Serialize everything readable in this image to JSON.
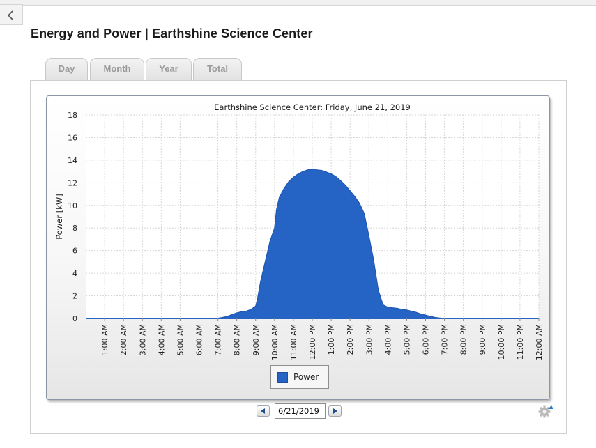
{
  "page": {
    "title": "Energy and Power | Earthshine Science Center"
  },
  "tabs": [
    {
      "label": "Day",
      "active": true
    },
    {
      "label": "Month",
      "active": false
    },
    {
      "label": "Year",
      "active": false
    },
    {
      "label": "Total",
      "active": false
    }
  ],
  "date_nav": {
    "value": "6/21/2019"
  },
  "icons": {
    "back": "chevron-left-icon",
    "prev": "triangle-left-icon",
    "next": "triangle-right-icon",
    "settings": "gear-icon"
  },
  "colors": {
    "series": "#2563c4",
    "grid": "#d6d6d6"
  },
  "chart_data": {
    "type": "area",
    "title": "Earthshine Science Center: Friday, June 21, 2019",
    "xlabel": "",
    "ylabel": "Power [kW]",
    "ylim": [
      0,
      18
    ],
    "yticks": [
      "0",
      "2",
      "4",
      "6",
      "8",
      "10",
      "12",
      "14",
      "16",
      "18"
    ],
    "xlim": [
      0,
      24
    ],
    "xticks": [
      "1:00 AM",
      "2:00 AM",
      "3:00 AM",
      "4:00 AM",
      "5:00 AM",
      "6:00 AM",
      "7:00 AM",
      "8:00 AM",
      "9:00 AM",
      "10:00 AM",
      "11:00 AM",
      "12:00 PM",
      "1:00 PM",
      "2:00 PM",
      "3:00 PM",
      "4:00 PM",
      "5:00 PM",
      "6:00 PM",
      "7:00 PM",
      "8:00 PM",
      "9:00 PM",
      "10:00 PM",
      "11:00 PM",
      "12:00 AM"
    ],
    "grid": true,
    "legend_position": "bottom-center",
    "series": [
      {
        "name": "Power",
        "x": [
          0,
          6.9,
          7.25,
          7.5,
          7.75,
          8,
          8.25,
          8.5,
          8.75,
          9,
          9.1,
          9.25,
          9.5,
          9.75,
          10,
          10.1,
          10.25,
          10.5,
          10.75,
          11,
          11.25,
          11.5,
          11.75,
          12,
          12.25,
          12.5,
          12.75,
          13,
          13.25,
          13.5,
          13.75,
          14,
          14.25,
          14.5,
          14.75,
          15,
          15.25,
          15.5,
          15.75,
          16,
          16.25,
          16.5,
          16.75,
          17,
          17.25,
          17.5,
          17.75,
          18,
          18.25,
          18.5,
          18.75,
          19,
          19.25,
          19.5,
          19.75,
          20,
          20.25,
          20.5,
          24
        ],
        "values": [
          0,
          0,
          0.1,
          0.2,
          0.35,
          0.5,
          0.6,
          0.65,
          0.8,
          1.1,
          1.8,
          3.2,
          5.0,
          6.8,
          8.0,
          9.6,
          10.7,
          11.5,
          12.1,
          12.5,
          12.8,
          13.0,
          13.15,
          13.2,
          13.15,
          13.1,
          12.95,
          12.8,
          12.55,
          12.2,
          11.8,
          11.3,
          10.8,
          10.2,
          9.3,
          7.3,
          5.2,
          2.5,
          1.2,
          1.0,
          0.95,
          0.9,
          0.8,
          0.75,
          0.65,
          0.55,
          0.4,
          0.3,
          0.2,
          0.1,
          0.05,
          0,
          0,
          0,
          0,
          0,
          0,
          0,
          0
        ]
      }
    ]
  }
}
